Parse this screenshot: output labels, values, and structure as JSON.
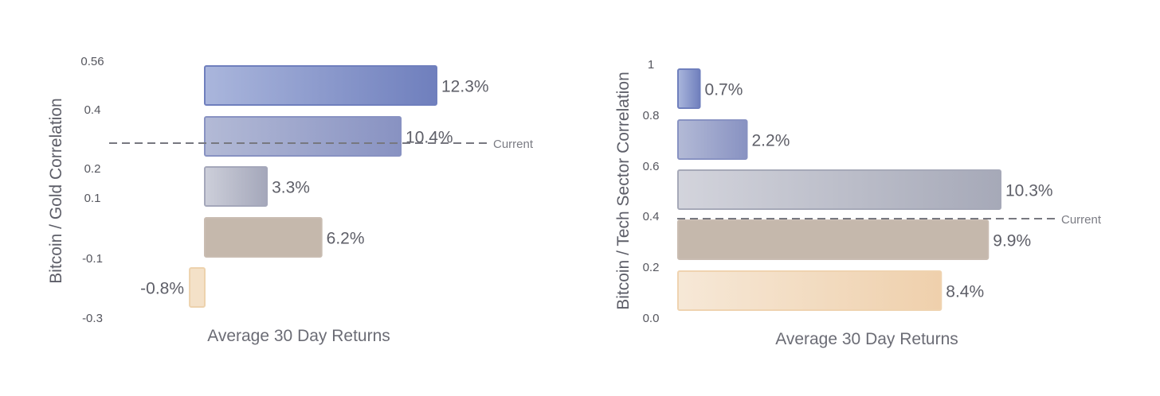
{
  "chart_data": [
    {
      "type": "bar",
      "orientation": "horizontal",
      "ylabel": "Bitcoin / Gold Correlation",
      "xlabel": "Average 30 Day Returns",
      "y_ticks": [
        "0.56",
        "0.4",
        "0.2",
        "0.1",
        "-0.1",
        "-0.3"
      ],
      "values": [
        12.3,
        10.4,
        3.3,
        6.2,
        -0.8
      ],
      "value_labels": [
        "12.3%",
        "10.4%",
        "3.3%",
        "6.2%",
        "-0.8%"
      ],
      "colors": [
        [
          "#aab6dc",
          "#6f7fbd"
        ],
        [
          "#b3bad6",
          "#8892c2"
        ],
        [
          "#cdcfda",
          "#a4a7ba"
        ],
        [
          "#c5b8ac",
          "#c5b8ac"
        ],
        [
          "#f4e1c8",
          "#f4e1c8"
        ]
      ],
      "borders": [
        "#6f7fbd",
        "#8892c2",
        "#a4a7ba",
        "#c9bcb1",
        "#edd2ad"
      ],
      "reference_line": {
        "label": "Current"
      },
      "grid": false
    },
    {
      "type": "bar",
      "orientation": "horizontal",
      "ylabel": "Bitcoin / Tech Sector Correlation",
      "xlabel": "Average 30 Day Returns",
      "y_ticks": [
        "1",
        "0.8",
        "0.6",
        "0.4",
        "0.2",
        "0.0"
      ],
      "values": [
        0.7,
        2.2,
        10.3,
        9.9,
        8.4
      ],
      "value_labels": [
        "0.7%",
        "2.2%",
        "10.3%",
        "9.9%",
        "8.4%"
      ],
      "colors": [
        [
          "#aab6dc",
          "#6f7fbd"
        ],
        [
          "#b3bad6",
          "#8892c2"
        ],
        [
          "#d3d4dc",
          "#a6a9b8"
        ],
        [
          "#c5b8ac",
          "#c5b8ac"
        ],
        [
          "#f6e8d7",
          "#efd0ac"
        ]
      ],
      "borders": [
        "#6f7fbd",
        "#8892c2",
        "#a6a9b8",
        "#c9bcb1",
        "#efd3b0"
      ],
      "reference_line": {
        "label": "Current"
      },
      "grid": false
    }
  ]
}
